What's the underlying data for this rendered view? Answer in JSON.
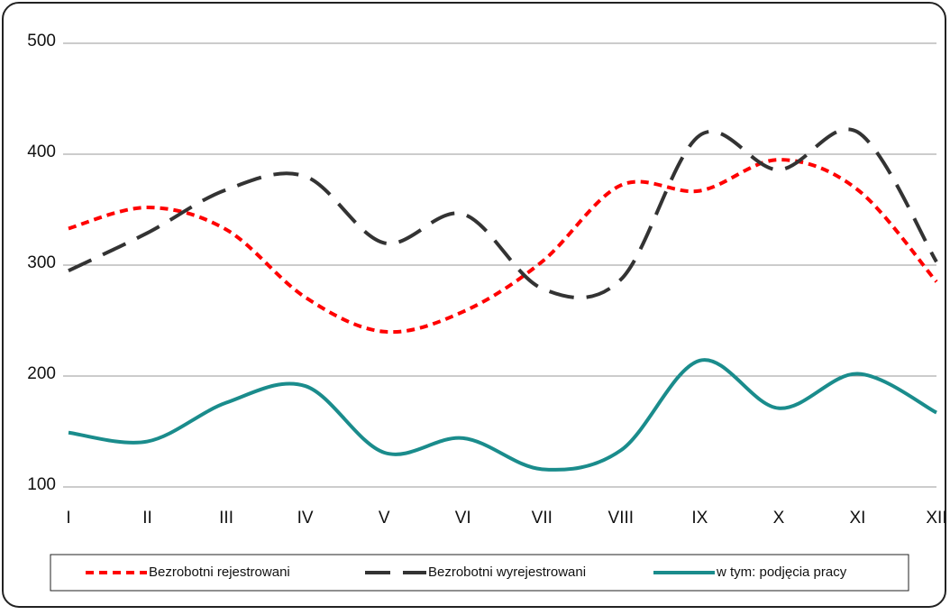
{
  "chart_data": {
    "type": "line",
    "categories": [
      "I",
      "II",
      "III",
      "IV",
      "V",
      "VI",
      "VII",
      "VIII",
      "IX",
      "X",
      "XI",
      "XII"
    ],
    "series": [
      {
        "name": "Bezrobotni rejestrowani",
        "color": "#ff0000",
        "dash": "dotted",
        "values": [
          333,
          352,
          332,
          271,
          240,
          258,
          303,
          372,
          367,
          395,
          368,
          285
        ]
      },
      {
        "name": "Bezrobotni wyrejestrowani",
        "color": "#333333",
        "dash": "dashed",
        "values": [
          295,
          329,
          368,
          380,
          320,
          346,
          279,
          287,
          417,
          386,
          420,
          303
        ]
      },
      {
        "name": "w tym: podjęcia pracy",
        "color": "#1a8c8c",
        "dash": "solid",
        "values": [
          149,
          141,
          176,
          191,
          131,
          144,
          116,
          133,
          214,
          171,
          202,
          167
        ]
      }
    ],
    "ylim": [
      100,
      500
    ],
    "yticks": [
      100,
      200,
      300,
      400,
      500
    ],
    "grid": true,
    "legend": "bottom"
  }
}
